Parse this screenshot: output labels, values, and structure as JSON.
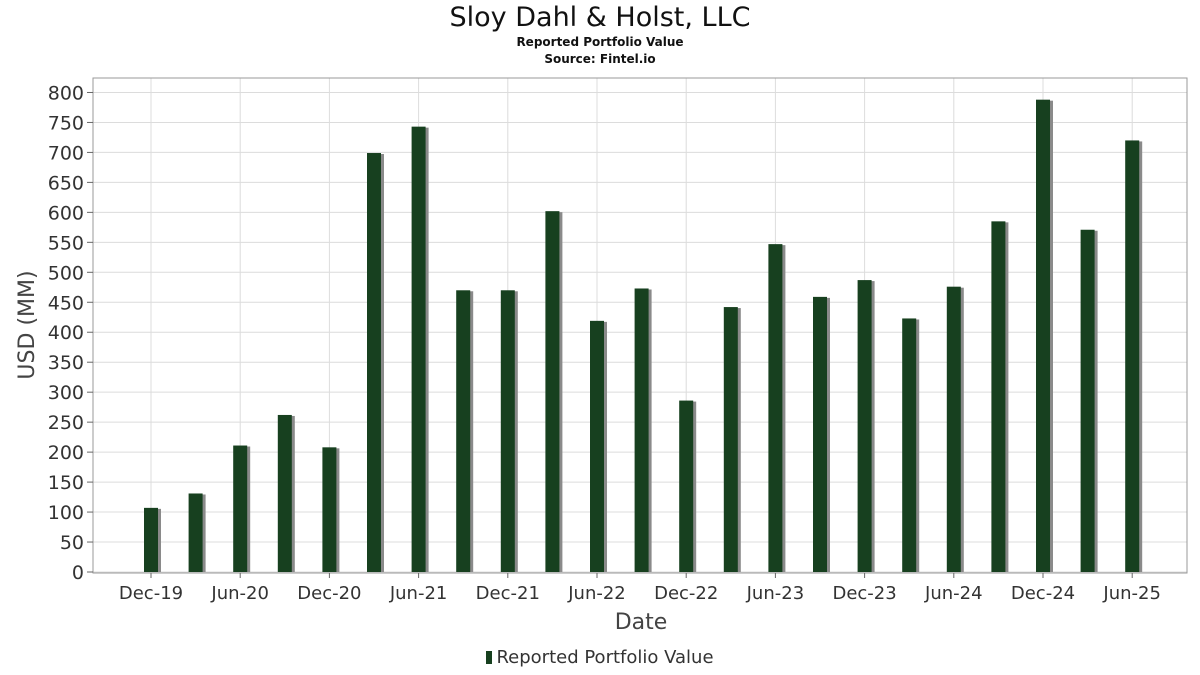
{
  "title": "Sloy Dahl & Holst, LLC",
  "subtitle": "Reported Portfolio Value",
  "source": "Source: Fintel.io",
  "legend_label": "Reported Portfolio Value",
  "colors": {
    "bar": "#17401f",
    "shadow": "#8a8a8a",
    "grid": "#dcdcdc",
    "frame": "#999999"
  },
  "chart_data": {
    "type": "bar",
    "title": "Sloy Dahl & Holst, LLC",
    "subtitle": "Reported Portfolio Value",
    "xlabel": "Date",
    "ylabel": "USD (MM)",
    "ylim": [
      0,
      825
    ],
    "yticks": [
      0,
      50,
      100,
      150,
      200,
      250,
      300,
      350,
      400,
      450,
      500,
      550,
      600,
      650,
      700,
      750,
      800
    ],
    "xtick_labels": [
      "Dec-19",
      "Jun-20",
      "Dec-20",
      "Jun-21",
      "Dec-21",
      "Jun-22",
      "Dec-22",
      "Jun-23",
      "Dec-23",
      "Jun-24",
      "Dec-24",
      "Jun-25"
    ],
    "grid": true,
    "legend_position": "bottom",
    "series": [
      {
        "name": "Reported Portfolio Value",
        "dates": [
          "Dec-19",
          "Mar-20",
          "Jun-20",
          "Sep-20",
          "Dec-20",
          "Mar-21",
          "Jun-21",
          "Sep-21",
          "Dec-21",
          "Mar-22",
          "Jun-22",
          "Sep-22",
          "Dec-22",
          "Mar-23",
          "Jun-23",
          "Sep-23",
          "Dec-23",
          "Mar-24",
          "Jun-24",
          "Sep-24",
          "Dec-24",
          "Mar-25",
          "Jun-25"
        ],
        "values": [
          107,
          131,
          211,
          262,
          208,
          699,
          743,
          470,
          470,
          602,
          419,
          473,
          286,
          442,
          547,
          459,
          487,
          423,
          476,
          585,
          788,
          571,
          720
        ]
      }
    ]
  }
}
